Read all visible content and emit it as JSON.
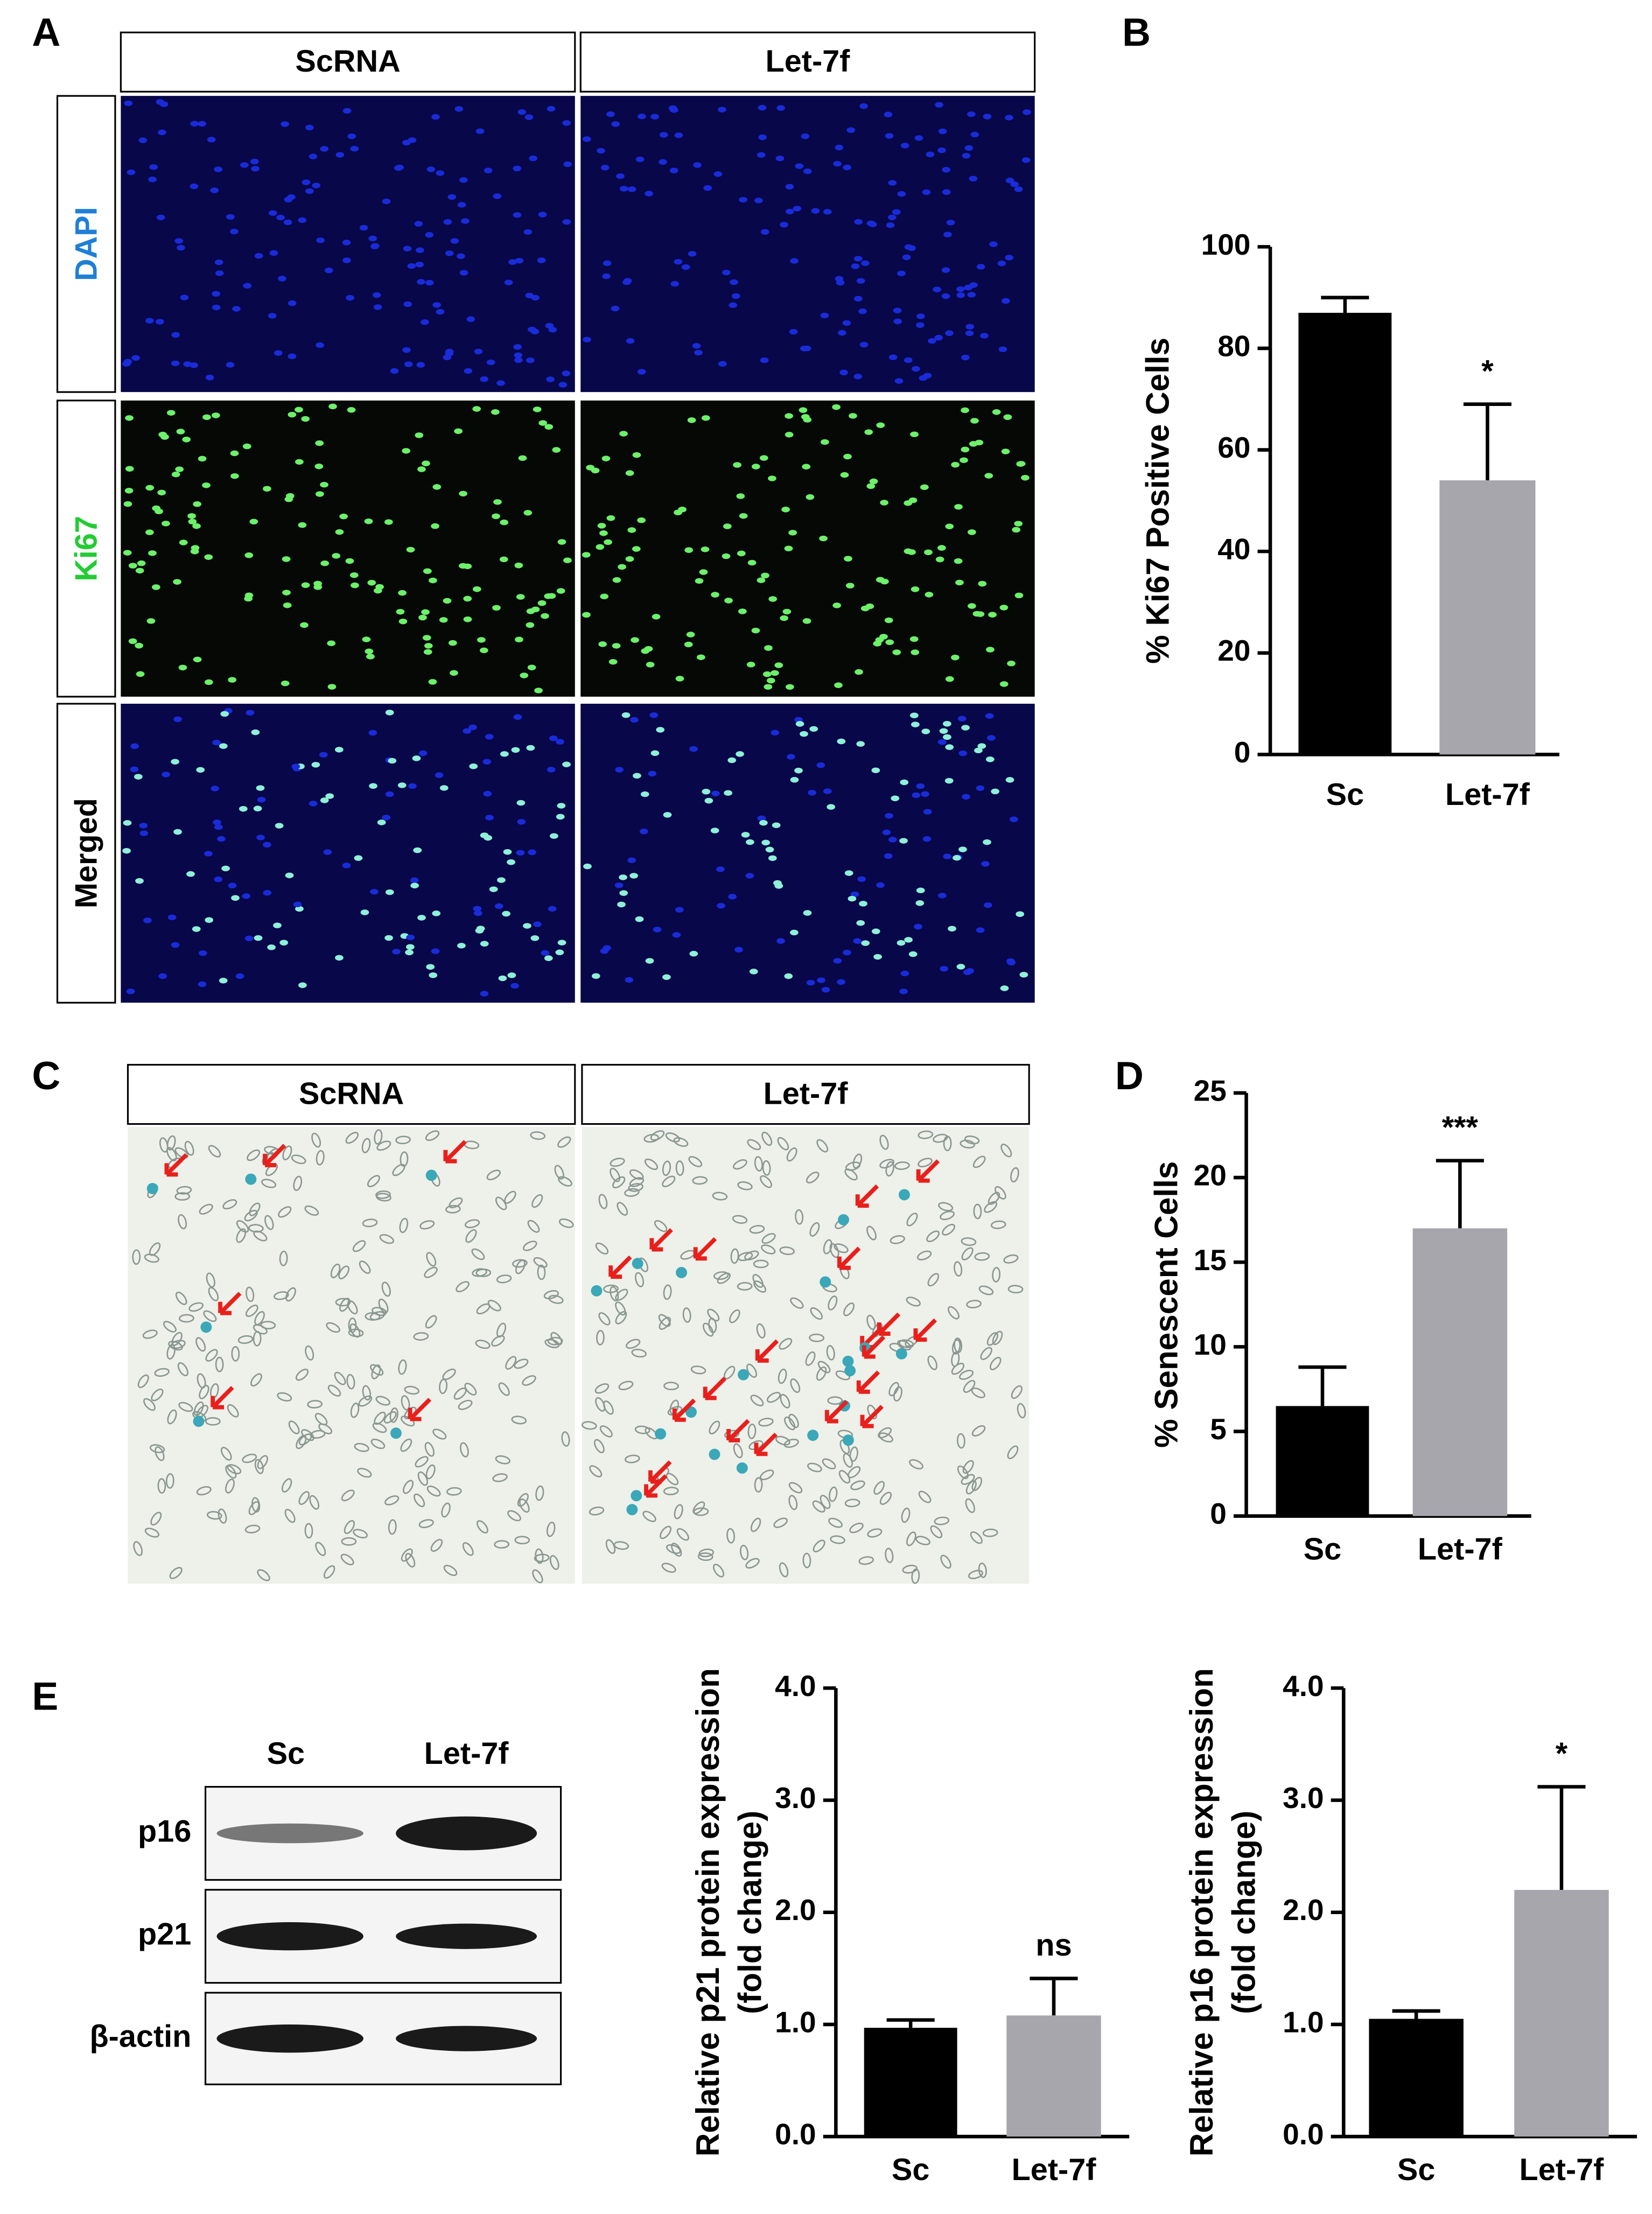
{
  "panel_labels": [
    "A",
    "B",
    "C",
    "D",
    "E"
  ],
  "panel_a": {
    "columns": [
      "ScRNA",
      "Let-7f"
    ],
    "rows": [
      "DAPI",
      "Ki67",
      "Merged"
    ]
  },
  "panel_c": {
    "columns": [
      "ScRNA",
      "Let-7f"
    ]
  },
  "panel_e": {
    "lanes": [
      "Sc",
      "Let-7f"
    ],
    "bands": [
      "p16",
      "p21",
      "β-actin"
    ]
  },
  "chart_data": [
    {
      "type": "bar",
      "ylabel": [
        "% Ki67 Positive Cells"
      ],
      "categories": [
        "Sc",
        "Let-7f"
      ],
      "values": [
        87,
        54
      ],
      "errors": [
        3,
        15
      ],
      "colors": [
        "#000000",
        "#a6a6ac"
      ],
      "annotations": [
        null,
        "*"
      ],
      "ylim": [
        0,
        100
      ],
      "yticks": [
        0,
        20,
        40,
        60,
        80,
        100
      ]
    },
    {
      "type": "bar",
      "ylabel": [
        "% Senescent Cells"
      ],
      "categories": [
        "Sc",
        "Let-7f"
      ],
      "values": [
        6.5,
        17
      ],
      "errors": [
        2.3,
        4
      ],
      "colors": [
        "#000000",
        "#a6a6ac"
      ],
      "annotations": [
        null,
        "***"
      ],
      "ylim": [
        0,
        25
      ],
      "yticks": [
        0,
        5,
        10,
        15,
        20,
        25
      ]
    },
    {
      "type": "bar",
      "ylabel": [
        "Relative p21 protein expression",
        "(fold change)"
      ],
      "categories": [
        "Sc",
        "Let-7f"
      ],
      "values": [
        0.97,
        1.08
      ],
      "errors": [
        0.07,
        0.33
      ],
      "colors": [
        "#000000",
        "#a6a6ac"
      ],
      "annotations": [
        null,
        "ns"
      ],
      "ylim": [
        0,
        4
      ],
      "yticks": [
        {
          "value": 0,
          "label": "0.0"
        },
        {
          "value": 1,
          "label": "1.0"
        },
        {
          "value": 2,
          "label": "2.0"
        },
        {
          "value": 3,
          "label": "3.0"
        },
        {
          "value": 4,
          "label": "4.0"
        }
      ]
    },
    {
      "type": "bar",
      "ylabel": [
        "Relative p16 protein expression",
        "(fold change)"
      ],
      "categories": [
        "Sc",
        "Let-7f"
      ],
      "values": [
        1.05,
        2.2
      ],
      "errors": [
        0.07,
        0.92
      ],
      "colors": [
        "#000000",
        "#a6a6ac"
      ],
      "annotations": [
        null,
        "*"
      ],
      "ylim": [
        0,
        4
      ],
      "yticks": [
        {
          "value": 0,
          "label": "0.0"
        },
        {
          "value": 1,
          "label": "1.0"
        },
        {
          "value": 2,
          "label": "2.0"
        },
        {
          "value": 3,
          "label": "3.0"
        },
        {
          "value": 4,
          "label": "4.0"
        }
      ]
    }
  ]
}
